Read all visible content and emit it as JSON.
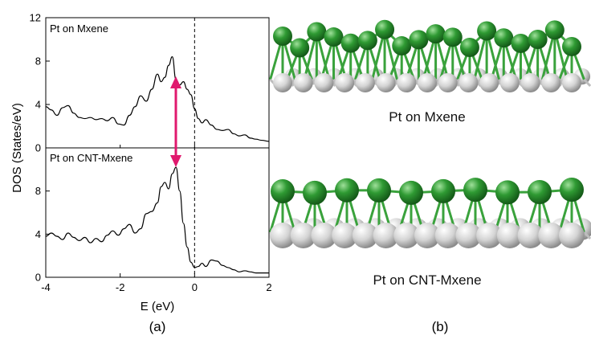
{
  "colors": {
    "curve": "#000000",
    "arrow": "#e0196e",
    "pt_atom": "#2f9a33",
    "pt_bond": "#3aa23c",
    "mxene_atom": "#d4d4d4",
    "mxene_bond": "#bdbdbd"
  },
  "chart_data": [
    {
      "type": "line",
      "panel": "upper",
      "title": "Pt on Mxene",
      "xlim": [
        -4,
        2
      ],
      "ylim": [
        0,
        12
      ],
      "yticks": [
        "0",
        "4",
        "8",
        "12"
      ],
      "x": [
        -4.0,
        -3.85,
        -3.7,
        -3.55,
        -3.4,
        -3.25,
        -3.1,
        -2.95,
        -2.8,
        -2.65,
        -2.5,
        -2.35,
        -2.2,
        -2.05,
        -1.9,
        -1.75,
        -1.6,
        -1.45,
        -1.3,
        -1.15,
        -1.0,
        -0.9,
        -0.8,
        -0.7,
        -0.6,
        -0.5,
        -0.4,
        -0.3,
        -0.2,
        -0.1,
        0.0,
        0.1,
        0.2,
        0.3,
        0.45,
        0.6,
        0.75,
        0.9,
        1.05,
        1.2,
        1.35,
        1.5,
        1.65,
        1.8,
        2.0
      ],
      "y": [
        3.8,
        3.5,
        3.0,
        3.7,
        3.9,
        3.2,
        2.8,
        2.7,
        2.8,
        2.6,
        2.7,
        2.5,
        2.8,
        2.2,
        2.1,
        3.0,
        3.8,
        4.8,
        4.3,
        5.4,
        6.8,
        6.1,
        6.5,
        7.6,
        8.4,
        6.3,
        5.8,
        6.1,
        5.4,
        4.9,
        3.6,
        2.7,
        2.3,
        2.6,
        2.1,
        1.7,
        1.6,
        1.7,
        1.3,
        1.1,
        1.2,
        0.9,
        0.8,
        0.7,
        0.6
      ]
    },
    {
      "type": "line",
      "panel": "lower",
      "title": "Pt on CNT-Mxene",
      "xlim": [
        -4,
        2
      ],
      "ylim": [
        0,
        12
      ],
      "xlabel": "E (eV)",
      "xticks": [
        "-4",
        "-2",
        "0",
        "2"
      ],
      "yticks": [
        "0",
        "4",
        "8"
      ],
      "x": [
        -4.0,
        -3.85,
        -3.7,
        -3.55,
        -3.4,
        -3.25,
        -3.1,
        -2.95,
        -2.8,
        -2.65,
        -2.5,
        -2.35,
        -2.2,
        -2.05,
        -1.9,
        -1.75,
        -1.6,
        -1.45,
        -1.3,
        -1.15,
        -1.0,
        -0.9,
        -0.8,
        -0.7,
        -0.6,
        -0.5,
        -0.4,
        -0.3,
        -0.2,
        -0.1,
        0.0,
        0.1,
        0.2,
        0.3,
        0.45,
        0.6,
        0.75,
        0.9,
        1.05,
        1.2,
        1.35,
        1.5,
        1.65,
        1.8,
        2.0
      ],
      "y": [
        3.8,
        4.1,
        3.8,
        3.5,
        4.1,
        3.7,
        3.4,
        3.7,
        3.2,
        3.6,
        3.3,
        3.9,
        4.3,
        3.9,
        4.5,
        4.9,
        4.1,
        4.5,
        5.9,
        6.1,
        6.9,
        8.4,
        8.8,
        8.2,
        9.6,
        10.2,
        8.0,
        5.0,
        2.8,
        1.4,
        0.9,
        1.0,
        1.3,
        1.0,
        1.6,
        1.5,
        1.1,
        0.9,
        0.7,
        0.5,
        0.6,
        0.5,
        0.4,
        0.4,
        0.4
      ]
    }
  ],
  "figure": {
    "ylabel": "DOS (States/eV)",
    "panel_a": "(a)",
    "panel_b": "(b)",
    "structure_top_label": "Pt on Mxene",
    "structure_bottom_label": "Pt on CNT-Mxene",
    "structure_top_pt_atoms": 18,
    "structure_bottom_pt_atoms": 10,
    "mxene_atoms_per_row": 15
  }
}
